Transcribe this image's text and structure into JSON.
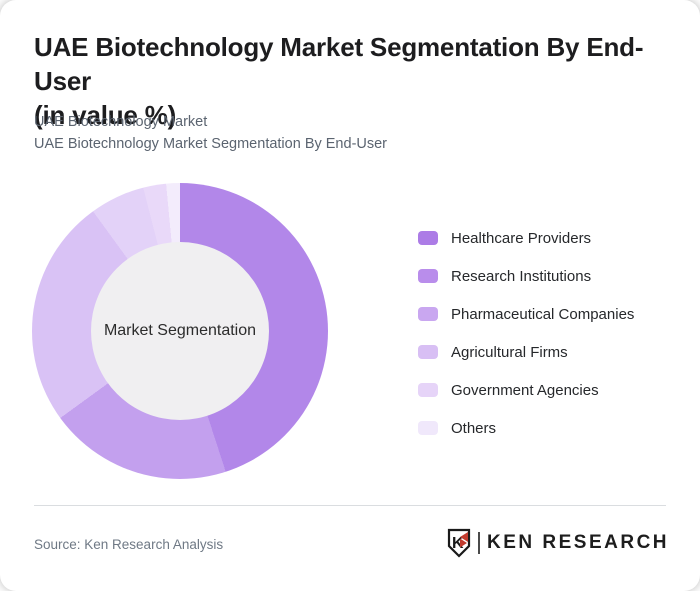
{
  "header": {
    "title_line1": "UAE Biotechnology Market Segmentation By End-User",
    "title_line2": "(in value %)",
    "subtitle_lines": [
      "UAE Biotechnology Market",
      "UAE Biotechnology Market Segmentation By End-User"
    ]
  },
  "chart_data": {
    "type": "pie",
    "donut": true,
    "center_label": "Market Segmentation",
    "start_angle_deg": 0,
    "direction": "clockwise",
    "legend_position": "right",
    "values_are_estimates_from_arc_angles": true,
    "unit": "%",
    "categories": [
      "Healthcare Providers",
      "Research Institutions",
      "Pharmaceutical Companies",
      "Agricultural Firms",
      "Government Agencies",
      "Others"
    ],
    "values": [
      45,
      20,
      25,
      6,
      2.5,
      1.5
    ],
    "colors": [
      "#b287e9",
      "#c3a0ee",
      "#d9c2f5",
      "#e3d2f8",
      "#e9d9f9",
      "#f3ecfc"
    ],
    "legend_colors": [
      "#ac7ce6",
      "#b98deb",
      "#c9a7f0",
      "#d8bff4",
      "#e6d4f8",
      "#f0e8fb"
    ],
    "hole_color": "#f0eff1"
  },
  "footer": {
    "source": "Source: Ken Research Analysis",
    "logo": {
      "shield_letter": "K",
      "wordmark": "KEN RESEARCH",
      "accent_color": "#c23b2e",
      "ink_color": "#1d1d1d"
    }
  }
}
